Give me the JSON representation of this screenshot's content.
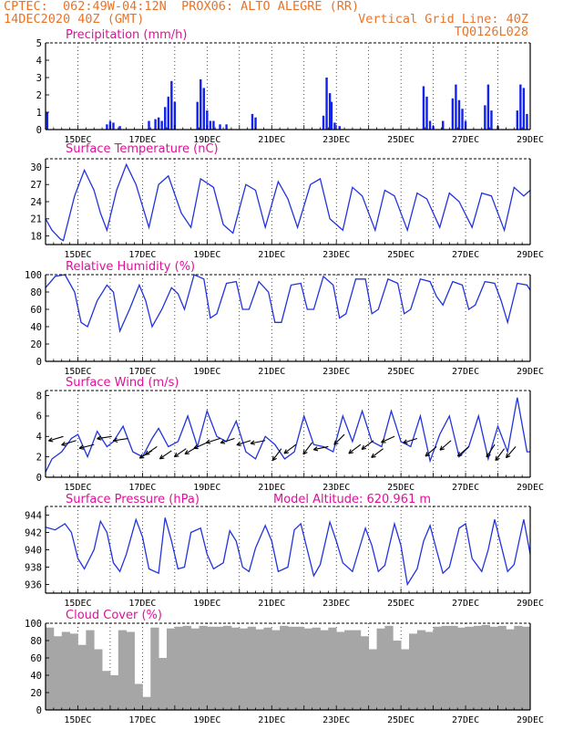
{
  "header": {
    "left1": "CPTEC:  062:49W-04:12N  PROX06: ALTO ALEGRE (RR)",
    "left2": "14DEC2020 40Z (GMT)",
    "right2": "Vertical Grid Line: 40Z",
    "right3": "TQ0126L028"
  },
  "colors": {
    "line": "#2233dd",
    "bar": "#1122ee",
    "cloud": "#a6a6a6",
    "title": "#e0109a",
    "header": "#e8742a",
    "arrow": "#000000"
  },
  "x_axis": {
    "start_day": 14,
    "end_day": 29,
    "labels": [
      "15DEC",
      "17DEC",
      "19DEC",
      "21DEC",
      "23DEC",
      "25DEC",
      "27DEC",
      "29DEC"
    ]
  },
  "chart_data": [
    {
      "type": "bar",
      "title": "Precipitation (mm/h)",
      "ylim": [
        0,
        5
      ],
      "yticks": [
        "0",
        "1",
        "2",
        "3",
        "4",
        "5"
      ],
      "x": [
        14.05,
        15.9,
        16.0,
        16.1,
        16.3,
        17.2,
        17.4,
        17.5,
        17.6,
        17.7,
        17.8,
        17.9,
        18.0,
        18.7,
        18.8,
        18.9,
        19.0,
        19.1,
        19.2,
        19.4,
        19.6,
        20.4,
        20.5,
        22.6,
        22.7,
        22.8,
        22.85,
        22.95,
        23.1,
        25.7,
        25.8,
        25.9,
        26.0,
        26.3,
        26.6,
        26.7,
        26.8,
        26.9,
        27.0,
        27.6,
        27.7,
        27.8,
        28.0,
        28.6,
        28.7,
        28.8,
        28.9
      ],
      "values": [
        1.0,
        0.3,
        0.5,
        0.4,
        0.2,
        0.5,
        0.6,
        0.7,
        0.5,
        1.3,
        1.9,
        2.8,
        1.6,
        1.6,
        2.9,
        2.4,
        1.1,
        0.5,
        0.5,
        0.3,
        0.3,
        0.9,
        0.7,
        0.8,
        3.0,
        2.1,
        1.6,
        0.4,
        0.2,
        2.5,
        1.9,
        0.5,
        0.2,
        0.5,
        1.8,
        2.6,
        1.7,
        1.2,
        0.5,
        1.4,
        2.6,
        1.1,
        0.2,
        1.1,
        2.6,
        2.4,
        0.9
      ]
    },
    {
      "type": "line",
      "title": "Surface Temperature (nC)",
      "ylim": [
        16.5,
        31.5
      ],
      "yticks": [
        "18",
        "21",
        "24",
        "27",
        "30"
      ],
      "x": [
        14.0,
        14.2,
        14.45,
        14.55,
        14.9,
        15.2,
        15.5,
        15.7,
        15.9,
        16.2,
        16.5,
        16.8,
        17.2,
        17.5,
        17.8,
        18.2,
        18.5,
        18.8,
        19.2,
        19.5,
        19.8,
        20.2,
        20.5,
        20.8,
        21.2,
        21.5,
        21.8,
        22.2,
        22.5,
        22.8,
        23.2,
        23.5,
        23.8,
        24.2,
        24.5,
        24.8,
        25.2,
        25.5,
        25.8,
        26.2,
        26.5,
        26.8,
        27.2,
        27.5,
        27.8,
        28.2,
        28.5,
        28.8,
        29.0
      ],
      "y": [
        21.0,
        19.0,
        17.5,
        17.2,
        25.0,
        29.5,
        26.0,
        22.0,
        19.0,
        26.0,
        30.5,
        27.0,
        19.5,
        27.0,
        28.5,
        22.0,
        19.5,
        28.0,
        26.5,
        20.0,
        18.5,
        27.0,
        26.0,
        19.5,
        27.5,
        24.5,
        19.5,
        27.0,
        28.0,
        21.0,
        19.0,
        26.5,
        25.0,
        19.0,
        26.0,
        25.0,
        19.0,
        25.5,
        24.5,
        19.5,
        25.5,
        24.0,
        19.5,
        25.5,
        25.0,
        19.0,
        26.5,
        25.0,
        26.0
      ]
    },
    {
      "type": "line",
      "title": "Relative Humidity (%)",
      "ylim": [
        0,
        100
      ],
      "yticks": [
        "0",
        "20",
        "40",
        "60",
        "80",
        "100"
      ],
      "x": [
        14.0,
        14.3,
        14.6,
        14.9,
        15.1,
        15.3,
        15.6,
        15.9,
        16.1,
        16.3,
        16.6,
        16.9,
        17.1,
        17.3,
        17.6,
        17.9,
        18.1,
        18.3,
        18.6,
        18.9,
        19.1,
        19.3,
        19.6,
        19.9,
        20.1,
        20.3,
        20.6,
        20.9,
        21.1,
        21.3,
        21.6,
        21.9,
        22.1,
        22.3,
        22.6,
        22.9,
        23.1,
        23.3,
        23.6,
        23.9,
        24.1,
        24.3,
        24.6,
        24.9,
        25.1,
        25.3,
        25.6,
        25.9,
        26.1,
        26.3,
        26.6,
        26.9,
        27.1,
        27.3,
        27.6,
        27.9,
        28.1,
        28.3,
        28.6,
        28.9,
        29.0
      ],
      "y": [
        85,
        98,
        100,
        80,
        45,
        40,
        70,
        88,
        80,
        35,
        60,
        88,
        70,
        40,
        60,
        85,
        78,
        60,
        100,
        95,
        50,
        55,
        90,
        92,
        60,
        60,
        92,
        80,
        45,
        45,
        88,
        90,
        60,
        60,
        98,
        88,
        50,
        55,
        95,
        95,
        55,
        60,
        95,
        90,
        55,
        60,
        95,
        92,
        75,
        65,
        92,
        88,
        60,
        65,
        92,
        90,
        70,
        45,
        90,
        88,
        82
      ]
    },
    {
      "type": "line",
      "title": "Surface Wind (m/s)",
      "ylim": [
        0,
        8.5
      ],
      "yticks": [
        "0",
        "2",
        "4",
        "6",
        "8"
      ],
      "x": [
        14.0,
        14.2,
        14.5,
        14.8,
        15.0,
        15.3,
        15.6,
        15.9,
        16.1,
        16.4,
        16.7,
        17.0,
        17.3,
        17.5,
        17.8,
        18.1,
        18.4,
        18.7,
        19.0,
        19.3,
        19.6,
        19.9,
        20.2,
        20.5,
        20.8,
        21.1,
        21.4,
        21.7,
        22.0,
        22.3,
        22.6,
        22.9,
        23.2,
        23.5,
        23.8,
        24.1,
        24.4,
        24.7,
        25.0,
        25.3,
        25.6,
        25.9,
        26.2,
        26.5,
        26.8,
        27.1,
        27.4,
        27.7,
        28.0,
        28.3,
        28.6,
        28.9,
        29.0
      ],
      "y": [
        0.5,
        1.8,
        2.5,
        3.8,
        4.2,
        2.0,
        4.5,
        3.0,
        3.5,
        5.0,
        2.5,
        2.0,
        3.8,
        4.8,
        3.0,
        3.5,
        6.0,
        3.0,
        6.5,
        4.0,
        3.5,
        5.5,
        2.5,
        1.8,
        4.0,
        3.2,
        1.8,
        2.5,
        6.0,
        3.2,
        3.0,
        2.5,
        6.0,
        3.5,
        6.5,
        3.5,
        3.0,
        6.5,
        3.5,
        3.0,
        6.0,
        1.6,
        4.2,
        6.0,
        2.0,
        3.0,
        6.0,
        1.8,
        5.0,
        2.5,
        7.8,
        2.5,
        2.5
      ]
    },
    {
      "type": "line",
      "title": "Surface Pressure (hPa)",
      "annotation": "Model Altitude: 620.961  m",
      "ylim": [
        935.0,
        945.0
      ],
      "yticks": [
        "936",
        "938",
        "940",
        "942",
        "944"
      ],
      "x": [
        14.0,
        14.3,
        14.6,
        14.8,
        15.0,
        15.2,
        15.5,
        15.7,
        15.9,
        16.1,
        16.3,
        16.5,
        16.8,
        17.0,
        17.2,
        17.5,
        17.7,
        17.9,
        18.1,
        18.3,
        18.5,
        18.8,
        19.0,
        19.2,
        19.5,
        19.7,
        19.9,
        20.1,
        20.3,
        20.5,
        20.8,
        21.0,
        21.2,
        21.5,
        21.7,
        21.9,
        22.1,
        22.3,
        22.5,
        22.8,
        23.0,
        23.2,
        23.5,
        23.7,
        23.9,
        24.1,
        24.3,
        24.5,
        24.8,
        25.0,
        25.2,
        25.5,
        25.7,
        25.9,
        26.1,
        26.3,
        26.5,
        26.8,
        27.0,
        27.2,
        27.5,
        27.7,
        27.9,
        28.1,
        28.3,
        28.5,
        28.8,
        29.0
      ],
      "y": [
        942.6,
        942.3,
        943.0,
        942.0,
        939.0,
        937.8,
        940.0,
        943.3,
        942.0,
        938.5,
        937.5,
        939.5,
        943.5,
        941.5,
        937.8,
        937.3,
        943.7,
        941.0,
        937.8,
        938.0,
        942.0,
        942.5,
        939.5,
        937.8,
        938.5,
        942.2,
        941.0,
        938.0,
        937.5,
        940.2,
        942.8,
        941.0,
        937.5,
        938.0,
        942.3,
        943.0,
        940.0,
        937.0,
        938.3,
        943.2,
        941.0,
        938.5,
        937.5,
        940.0,
        942.5,
        940.5,
        937.5,
        938.2,
        943.0,
        940.5,
        936.0,
        937.8,
        941.0,
        942.8,
        940.0,
        937.3,
        938.0,
        942.5,
        943.0,
        939.0,
        937.5,
        940.0,
        943.5,
        940.5,
        937.5,
        938.3,
        943.5,
        939.5
      ]
    },
    {
      "type": "bar",
      "title": "Cloud Cover (%)",
      "ylim": [
        0,
        100
      ],
      "yticks": [
        "0",
        "20",
        "40",
        "60",
        "80",
        "100"
      ],
      "x": [
        14.0,
        14.25,
        14.5,
        14.75,
        15.0,
        15.25,
        15.5,
        15.75,
        16.0,
        16.25,
        16.5,
        16.75,
        17.0,
        17.25,
        17.5,
        17.75,
        18.0,
        18.25,
        18.5,
        18.75,
        19.0,
        19.25,
        19.5,
        19.75,
        20.0,
        20.25,
        20.5,
        20.75,
        21.0,
        21.25,
        21.5,
        21.75,
        22.0,
        22.25,
        22.5,
        22.75,
        23.0,
        23.25,
        23.5,
        23.75,
        24.0,
        24.25,
        24.5,
        24.75,
        25.0,
        25.25,
        25.5,
        25.75,
        26.0,
        26.25,
        26.5,
        26.75,
        27.0,
        27.25,
        27.5,
        27.75,
        28.0,
        28.25,
        28.5,
        28.75
      ],
      "values": [
        95,
        85,
        90,
        88,
        75,
        92,
        70,
        45,
        40,
        92,
        90,
        30,
        15,
        95,
        60,
        94,
        96,
        97,
        94,
        97,
        96,
        96,
        97,
        95,
        94,
        96,
        93,
        95,
        92,
        97,
        96,
        96,
        94,
        95,
        92,
        95,
        90,
        92,
        92,
        85,
        70,
        94,
        97,
        80,
        70,
        88,
        92,
        90,
        96,
        97,
        97,
        95,
        96,
        97,
        98,
        96,
        97,
        93,
        97,
        96
      ]
    }
  ],
  "wind_arrows": {
    "x": [
      14.55,
      14.95,
      15.5,
      16.05,
      16.55,
      17.3,
      17.45,
      17.9,
      18.35,
      18.7,
      19.0,
      19.4,
      19.85,
      20.35,
      20.8,
      21.3,
      21.75,
      22.25,
      22.75,
      23.25,
      23.75,
      24.15,
      24.45,
      24.8,
      25.5,
      26.1,
      26.55,
      27.1,
      27.9,
      28.2,
      28.55
    ],
    "spd": [
      4.0,
      3.6,
      3.2,
      4.0,
      3.8,
      2.6,
      3.0,
      2.6,
      2.8,
      3.0,
      3.4,
      3.8,
      3.8,
      3.6,
      3.6,
      2.8,
      3.2,
      3.4,
      3.0,
      4.2,
      3.2,
      3.6,
      2.8,
      4.0,
      3.8,
      3.0,
      3.6,
      3.0,
      3.2,
      2.8,
      3.0
    ],
    "dx": [
      -1.0,
      -1.0,
      -1.0,
      -1.0,
      -1.0,
      -0.85,
      -0.8,
      -0.8,
      -0.8,
      -0.85,
      -0.9,
      -0.95,
      -0.95,
      -0.95,
      -1.0,
      -0.6,
      -0.8,
      -0.6,
      -1.0,
      -0.7,
      -0.8,
      -0.8,
      -0.8,
      -0.9,
      -0.95,
      -0.75,
      -0.75,
      -0.75,
      -0.55,
      -0.6,
      -0.65
    ],
    "dy": [
      -0.3,
      -0.3,
      -0.25,
      -0.15,
      -0.15,
      -0.5,
      -0.55,
      -0.55,
      -0.55,
      -0.5,
      -0.4,
      -0.3,
      -0.3,
      -0.3,
      -0.2,
      -0.8,
      -0.6,
      -0.8,
      -0.2,
      -0.7,
      -0.6,
      -0.6,
      -0.6,
      -0.4,
      -0.3,
      -0.65,
      -0.65,
      -0.65,
      -0.85,
      -0.8,
      -0.75
    ]
  }
}
